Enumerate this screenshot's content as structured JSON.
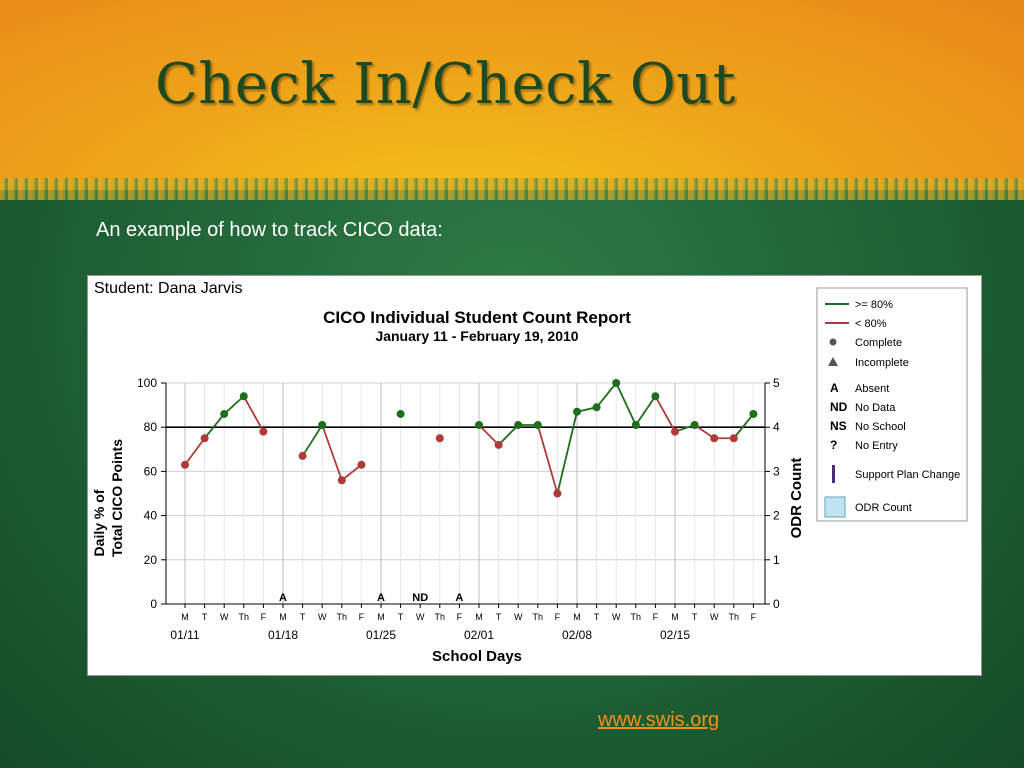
{
  "slide": {
    "title": "Check In/Check Out",
    "subtitle": "An example of how to track CICO data:",
    "link": "www.swis.org"
  },
  "colors": {
    "above_80": "#1f6e1f",
    "below_80": "#b03a3a",
    "link": "#ff8c1a",
    "title": "#1e4a22"
  },
  "chart_data": {
    "type": "line",
    "student_label": "Student: Dana Jarvis",
    "title": "CICO Individual Student Count Report",
    "subtitle": "January 11 - February 19, 2010",
    "xlabel": "School Days",
    "ylabel_line1": "Daily % of",
    "ylabel_line2": "Total CICO Points",
    "ylabel_right": "ODR Count",
    "ylim": [
      0,
      100
    ],
    "yticks": [
      0,
      20,
      40,
      60,
      80,
      100
    ],
    "y2lim": [
      0,
      5
    ],
    "y2ticks": [
      0,
      1,
      2,
      3,
      4,
      5
    ],
    "goal_line": 80,
    "days": [
      "M",
      "T",
      "W",
      "Th",
      "F",
      "M",
      "T",
      "W",
      "Th",
      "F",
      "M",
      "T",
      "W",
      "Th",
      "F",
      "M",
      "T",
      "W",
      "Th",
      "F",
      "M",
      "T",
      "W",
      "Th",
      "F",
      "M",
      "T",
      "W",
      "Th",
      "F"
    ],
    "week_labels": [
      {
        "day": 0,
        "label": "01/11"
      },
      {
        "day": 5,
        "label": "01/18"
      },
      {
        "day": 10,
        "label": "01/25"
      },
      {
        "day": 15,
        "label": "02/01"
      },
      {
        "day": 20,
        "label": "02/08"
      },
      {
        "day": 25,
        "label": "02/15"
      }
    ],
    "values": [
      63,
      75,
      86,
      94,
      78,
      null,
      67,
      81,
      56,
      63,
      null,
      86,
      null,
      75,
      null,
      81,
      72,
      81,
      81,
      50,
      87,
      89,
      100,
      81,
      94,
      78,
      81,
      75,
      75,
      86
    ],
    "codes": [
      {
        "day": 5,
        "code": "A"
      },
      {
        "day": 10,
        "code": "A"
      },
      {
        "day": 12,
        "code": "ND"
      },
      {
        "day": 14,
        "code": "A"
      }
    ],
    "legend": [
      {
        "key": "line-green",
        "label": ">= 80%"
      },
      {
        "key": "line-red",
        "label": "< 80%"
      },
      {
        "key": "dot",
        "label": "Complete"
      },
      {
        "key": "triangle",
        "label": "Incomplete"
      },
      {
        "key": "A",
        "label": "Absent"
      },
      {
        "key": "ND",
        "label": "No Data"
      },
      {
        "key": "NS",
        "label": "No School"
      },
      {
        "key": "?",
        "label": "No Entry"
      },
      {
        "key": "bar",
        "label": "Support Plan Change"
      },
      {
        "key": "box",
        "label": "ODR Count"
      }
    ],
    "legend_placement": "right",
    "grid": "vertical-weekly"
  }
}
